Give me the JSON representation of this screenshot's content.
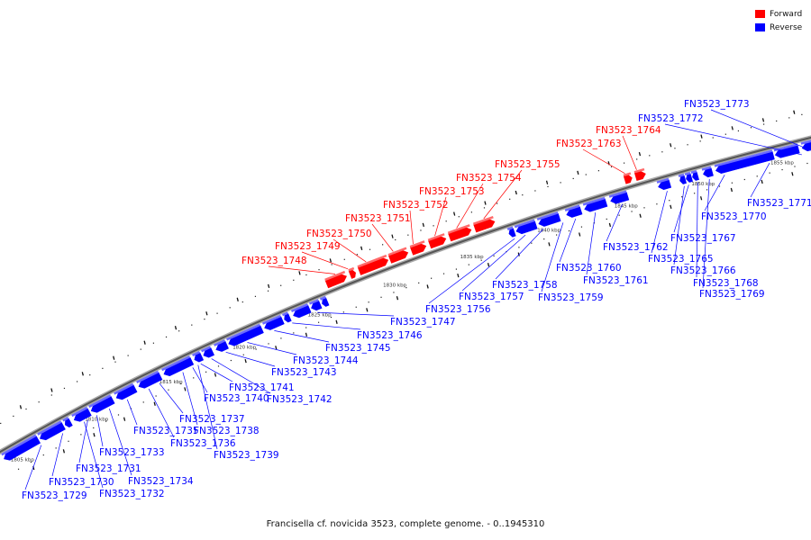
{
  "legend": {
    "forward_label": "Forward",
    "reverse_label": "Reverse",
    "forward_color": "#ff0000",
    "reverse_color": "#0000ff"
  },
  "caption": "Francisella cf. novicida 3523, complete genome. - 0..1945310",
  "genome": {
    "tick_labels": [
      "1805 kbp",
      "1810 kbp",
      "1815 kbp",
      "1820 kbp",
      "1825 kbp",
      "1830 kbp",
      "1835 kbp",
      "1840 kbp",
      "1845 kbp",
      "1850 kbp",
      "1855 kbp"
    ]
  },
  "forward_genes": [
    "FN3523_1748",
    "FN3523_1749",
    "FN3523_1750",
    "FN3523_1751",
    "FN3523_1752",
    "FN3523_1753",
    "FN3523_1754",
    "FN3523_1755",
    "FN3523_1763",
    "FN3523_1764"
  ],
  "reverse_genes": [
    "FN3523_1729",
    "FN3523_1730",
    "FN3523_1731",
    "FN3523_1732",
    "FN3523_1733",
    "FN3523_1734",
    "FN3523_1735",
    "FN3523_1736",
    "FN3523_1737",
    "FN3523_1738",
    "FN3523_1739",
    "FN3523_1740",
    "FN3523_1741",
    "FN3523_1742",
    "FN3523_1743",
    "FN3523_1744",
    "FN3523_1745",
    "FN3523_1746",
    "FN3523_1747",
    "FN3523_1756",
    "FN3523_1757",
    "FN3523_1758",
    "FN3523_1759",
    "FN3523_1760",
    "FN3523_1761",
    "FN3523_1762",
    "FN3523_1765",
    "FN3523_1766",
    "FN3523_1767",
    "FN3523_1768",
    "FN3523_1769",
    "FN3523_1770",
    "FN3523_1771",
    "FN3523_1772",
    "FN3523_1773"
  ]
}
